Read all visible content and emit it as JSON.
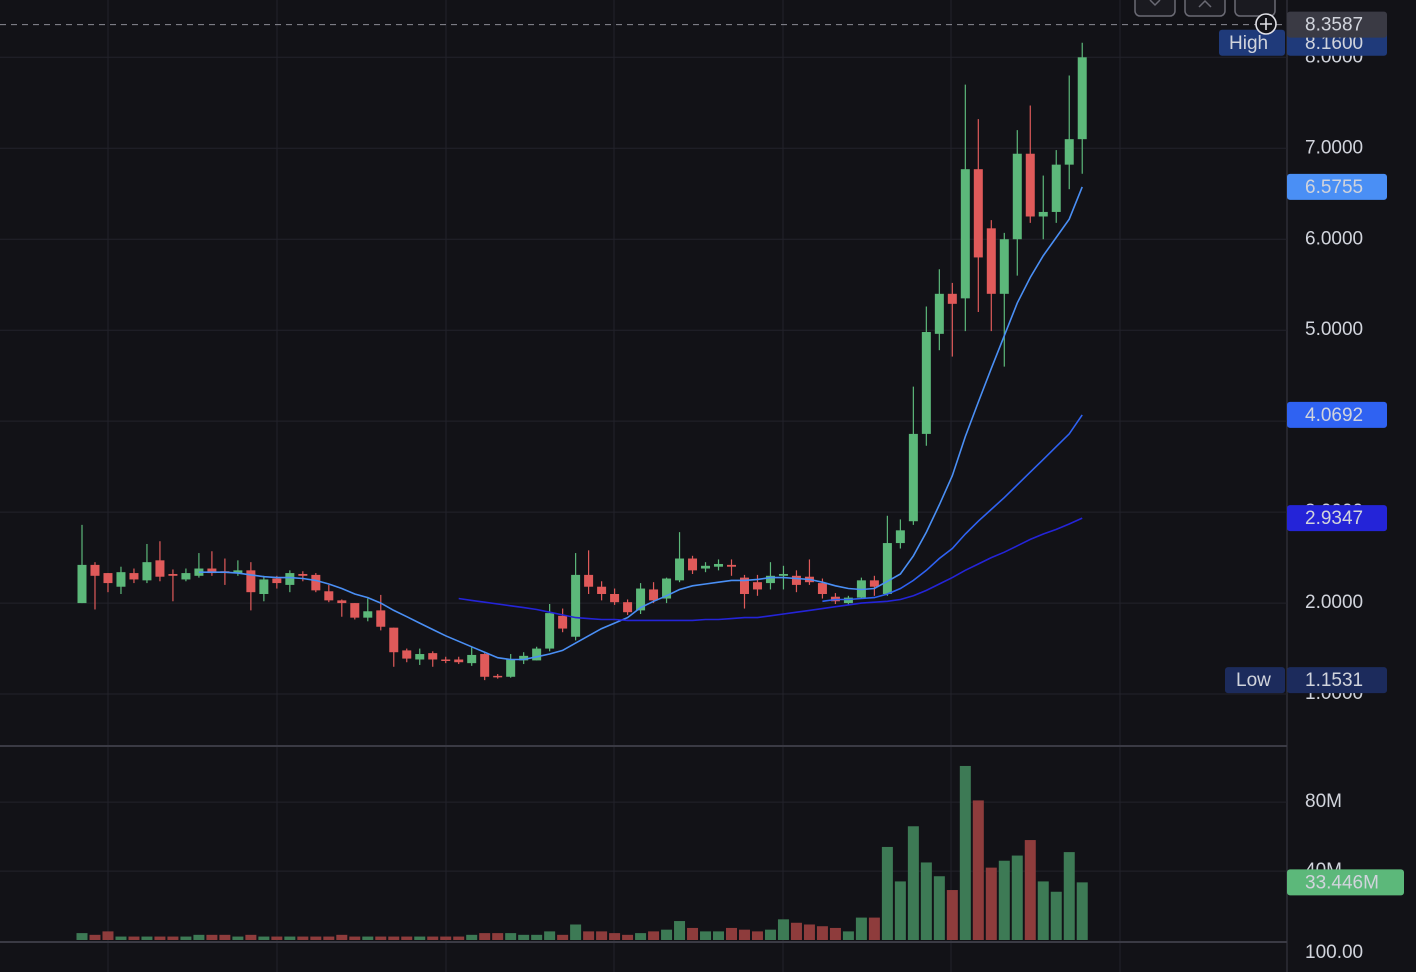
{
  "chart_data": {
    "type": "candlestick",
    "up_color": "#5cb87a",
    "down_color": "#e05a5a",
    "volume_up_color": "#3d7a55",
    "volume_down_color": "#8e3c3c",
    "open": [
      2.0,
      2.42,
      2.33,
      2.18,
      2.33,
      2.25,
      2.47,
      2.32,
      2.26,
      2.3,
      2.38,
      2.35,
      2.33,
      2.36,
      2.1,
      2.27,
      2.2,
      2.32,
      2.31,
      2.13,
      2.03,
      2.0,
      1.84,
      1.92,
      1.73,
      1.48,
      1.38,
      1.45,
      1.38,
      1.38,
      1.34,
      1.44,
      1.2,
      1.19,
      1.37,
      1.37,
      1.5,
      1.86,
      1.63,
      2.31,
      2.18,
      2.1,
      2.01,
      1.92,
      2.15,
      2.05,
      2.25,
      2.49,
      2.38,
      2.4,
      2.42,
      2.28,
      2.23,
      2.22,
      2.3,
      2.3,
      2.29,
      2.22,
      2.07,
      2.0,
      2.06,
      2.25,
      2.1,
      2.66,
      2.9,
      3.86,
      4.96,
      5.4,
      5.35,
      6.77,
      6.12,
      5.4,
      6.0,
      6.94,
      6.25,
      6.3,
      6.82,
      7.1
    ],
    "high": [
      2.86,
      2.45,
      2.33,
      2.4,
      2.38,
      2.65,
      2.68,
      2.37,
      2.38,
      2.55,
      2.57,
      2.49,
      2.47,
      2.45,
      2.3,
      2.3,
      2.36,
      2.35,
      2.33,
      2.2,
      2.04,
      2.0,
      2.05,
      2.09,
      1.73,
      1.5,
      1.5,
      1.47,
      1.41,
      1.41,
      1.52,
      1.45,
      1.22,
      1.44,
      1.46,
      1.52,
      1.99,
      1.94,
      2.55,
      2.58,
      2.24,
      2.16,
      2.04,
      2.22,
      2.23,
      2.28,
      2.78,
      2.52,
      2.45,
      2.48,
      2.48,
      2.31,
      2.31,
      2.45,
      2.41,
      2.36,
      2.48,
      2.27,
      2.11,
      2.08,
      2.28,
      2.3,
      2.96,
      2.92,
      4.38,
      5.26,
      5.67,
      5.52,
      7.7,
      7.32,
      6.21,
      6.07,
      7.2,
      7.47,
      6.7,
      6.98,
      7.8,
      8.16
    ],
    "low": [
      2.0,
      1.93,
      2.12,
      2.1,
      2.22,
      2.22,
      2.24,
      2.02,
      2.24,
      2.28,
      2.3,
      2.2,
      2.3,
      1.92,
      2.02,
      2.16,
      2.12,
      2.24,
      2.12,
      2.01,
      1.85,
      1.82,
      1.8,
      1.7,
      1.3,
      1.35,
      1.32,
      1.3,
      1.34,
      1.33,
      1.31,
      1.1531,
      1.17,
      1.18,
      1.33,
      1.37,
      1.47,
      1.68,
      1.59,
      2.1,
      2.03,
      1.98,
      1.87,
      1.88,
      2.0,
      2.0,
      2.23,
      2.32,
      2.34,
      2.36,
      2.3,
      1.94,
      2.08,
      2.15,
      2.15,
      2.12,
      2.2,
      2.05,
      1.99,
      1.98,
      2.05,
      2.08,
      2.08,
      2.6,
      2.86,
      3.73,
      4.78,
      4.71,
      4.99,
      5.2,
      4.99,
      4.6,
      5.6,
      6.18,
      6.0,
      6.18,
      6.55,
      6.72
    ],
    "close": [
      2.42,
      2.3,
      2.22,
      2.34,
      2.26,
      2.45,
      2.29,
      2.3,
      2.33,
      2.38,
      2.33,
      2.33,
      2.36,
      2.12,
      2.26,
      2.22,
      2.33,
      2.3,
      2.14,
      2.03,
      2.0,
      1.84,
      1.91,
      1.74,
      1.46,
      1.39,
      1.44,
      1.38,
      1.37,
      1.35,
      1.43,
      1.19,
      1.19,
      1.38,
      1.42,
      1.5,
      1.89,
      1.72,
      2.31,
      2.18,
      2.1,
      2.01,
      1.9,
      2.16,
      2.03,
      2.27,
      2.49,
      2.36,
      2.41,
      2.43,
      2.4,
      2.1,
      2.15,
      2.3,
      2.32,
      2.2,
      2.23,
      2.1,
      2.02,
      2.06,
      2.25,
      2.18,
      2.66,
      2.8,
      3.86,
      4.98,
      5.4,
      5.29,
      6.77,
      5.8,
      5.4,
      6.0,
      6.94,
      6.25,
      6.3,
      6.82,
      7.1,
      8.0
    ],
    "ylim": [
      0.44,
      8.63
    ],
    "yticks": [
      {
        "value": 1,
        "label": "1.0000"
      },
      {
        "value": 2,
        "label": "2.0000"
      },
      {
        "value": 3,
        "label": "3.0000"
      },
      {
        "value": 4,
        "label": "4.0000"
      },
      {
        "value": 5,
        "label": "5.0000"
      },
      {
        "value": 6,
        "label": "6.0000"
      },
      {
        "value": 7,
        "label": "7.0000"
      },
      {
        "value": 8,
        "label": "8.0000"
      }
    ],
    "ma_series": [
      {
        "color": "#4a8ff5",
        "values": [
          null,
          null,
          null,
          null,
          null,
          null,
          null,
          null,
          null,
          2.34,
          2.34,
          2.34,
          2.33,
          2.31,
          2.29,
          2.28,
          2.28,
          2.27,
          2.25,
          2.21,
          2.16,
          2.1,
          2.06,
          2.0,
          1.92,
          1.85,
          1.78,
          1.71,
          1.64,
          1.58,
          1.52,
          1.46,
          1.4,
          1.38,
          1.38,
          1.41,
          1.44,
          1.48,
          1.56,
          1.64,
          1.72,
          1.78,
          1.84,
          1.95,
          2.02,
          2.08,
          2.15,
          2.19,
          2.21,
          2.23,
          2.25,
          2.25,
          2.26,
          2.28,
          2.28,
          2.27,
          2.26,
          2.23,
          2.19,
          2.16,
          2.15,
          2.16,
          2.24,
          2.32,
          2.52,
          2.78,
          3.08,
          3.4,
          3.83,
          4.21,
          4.58,
          4.94,
          5.3,
          5.58,
          5.82,
          6.02,
          6.22,
          6.5755
        ]
      },
      {
        "color": "#2f62f2",
        "values": [
          null,
          null,
          null,
          null,
          null,
          null,
          null,
          null,
          null,
          null,
          null,
          null,
          null,
          null,
          null,
          null,
          null,
          null,
          null,
          null,
          null,
          null,
          null,
          null,
          null,
          null,
          null,
          null,
          null,
          null,
          null,
          null,
          null,
          null,
          null,
          null,
          null,
          null,
          null,
          null,
          null,
          null,
          null,
          null,
          null,
          null,
          null,
          null,
          null,
          null,
          null,
          null,
          null,
          null,
          null,
          null,
          null,
          2.02,
          2.04,
          2.04,
          2.05,
          2.06,
          2.1,
          2.16,
          2.25,
          2.36,
          2.49,
          2.6,
          2.76,
          2.9,
          3.03,
          3.16,
          3.3,
          3.44,
          3.58,
          3.72,
          3.86,
          4.0692
        ]
      },
      {
        "color": "#2424d8",
        "values": [
          null,
          null,
          null,
          null,
          null,
          null,
          null,
          null,
          null,
          null,
          null,
          null,
          null,
          null,
          null,
          null,
          null,
          null,
          null,
          null,
          null,
          null,
          null,
          null,
          null,
          null,
          null,
          null,
          null,
          2.05,
          2.03,
          2.01,
          1.99,
          1.97,
          1.95,
          1.93,
          1.9,
          1.87,
          1.84,
          1.83,
          1.82,
          1.82,
          1.81,
          1.81,
          1.81,
          1.81,
          1.81,
          1.81,
          1.82,
          1.82,
          1.83,
          1.84,
          1.84,
          1.86,
          1.88,
          1.9,
          1.92,
          1.94,
          1.96,
          1.98,
          2.0,
          2.01,
          2.02,
          2.04,
          2.08,
          2.14,
          2.21,
          2.28,
          2.36,
          2.43,
          2.5,
          2.56,
          2.63,
          2.7,
          2.76,
          2.81,
          2.87,
          2.9347
        ]
      }
    ],
    "crosshair": {
      "value": 8.3587
    },
    "high_marker": {
      "label": "High",
      "value": 8.16,
      "value_label": "8.1600"
    },
    "low_marker": {
      "label": "Low",
      "value": 1.1531
    },
    "volume": {
      "values": [
        4000000,
        3000000,
        5000000,
        2000000,
        2000000,
        2000000,
        2000000,
        2000000,
        2000000,
        3000000,
        3000000,
        3000000,
        2000000,
        3000000,
        2000000,
        2000000,
        2000000,
        2000000,
        2000000,
        2000000,
        3000000,
        2000000,
        2000000,
        2000000,
        2000000,
        2000000,
        2000000,
        2000000,
        2000000,
        2000000,
        3000000,
        4000000,
        4000000,
        4000000,
        3000000,
        3000000,
        5000000,
        3000000,
        9000000,
        5000000,
        5000000,
        4000000,
        3000000,
        4000000,
        5000000,
        6000000,
        11000000,
        7000000,
        5000000,
        5000000,
        7000000,
        6000000,
        5000000,
        6000000,
        12000000,
        10000000,
        9000000,
        8000000,
        7000000,
        5000000,
        13000000,
        13000000,
        54000000,
        34000000,
        66000000,
        45000000,
        37000000,
        29000000,
        101000000,
        81000000,
        42000000,
        46000000,
        49000000,
        58000000,
        34000000,
        28000000,
        51000000,
        33446000
      ],
      "ylim": [
        0,
        112000000
      ],
      "yticks": [
        {
          "value": 40000000,
          "label": "40M"
        },
        {
          "value": 80000000,
          "label": "80M"
        }
      ],
      "last_label": {
        "value": 33446000,
        "label": "33.446M"
      }
    },
    "lower_pane_label": "100.00"
  }
}
